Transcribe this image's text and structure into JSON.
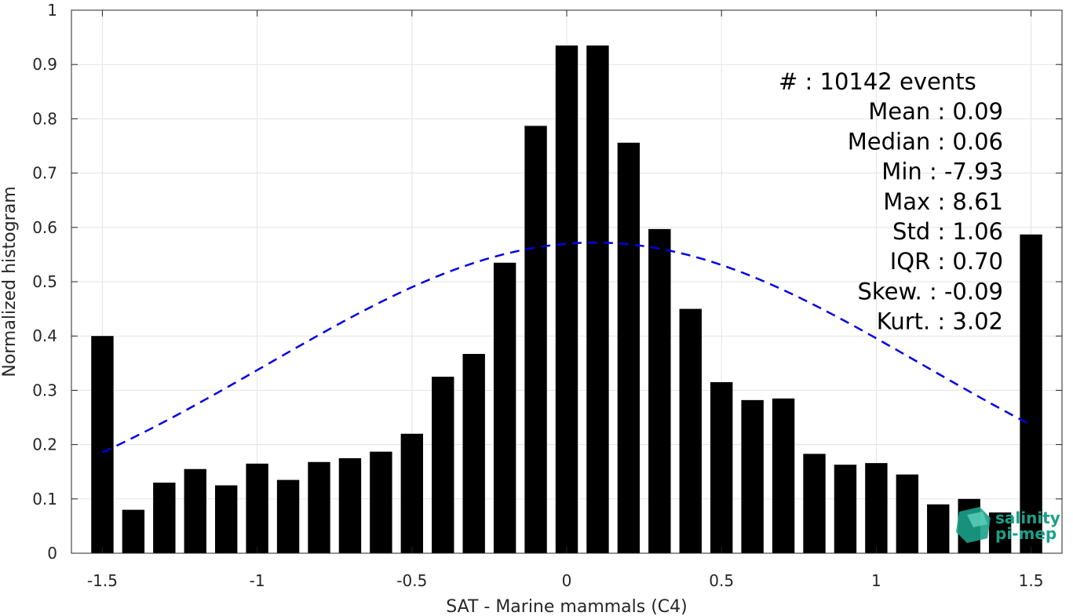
{
  "chart_data": {
    "type": "bar",
    "xlabel": "SAT - Marine mammals (C4)",
    "ylabel": "Normalized histogram",
    "xlim": [
      -1.6,
      1.6
    ],
    "ylim": [
      0,
      1
    ],
    "xticks": [
      -1.5,
      -1,
      -0.5,
      0,
      0.5,
      1,
      1.5
    ],
    "xtick_labels": [
      "-1.5",
      "-1",
      "-0.5",
      "0",
      "0.5",
      "1",
      "1.5"
    ],
    "yticks": [
      0,
      0.1,
      0.2,
      0.3,
      0.4,
      0.5,
      0.6,
      0.7,
      0.8,
      0.9,
      1
    ],
    "ytick_labels": [
      "0",
      "0.1",
      "0.2",
      "0.3",
      "0.4",
      "0.5",
      "0.6",
      "0.7",
      "0.8",
      "0.9",
      "1"
    ],
    "grid": true,
    "bar_color": "#000000",
    "bins": [
      -1.5,
      -1.4,
      -1.3,
      -1.2,
      -1.1,
      -1.0,
      -0.9,
      -0.8,
      -0.7,
      -0.6,
      -0.5,
      -0.4,
      -0.3,
      -0.2,
      -0.1,
      0.0,
      0.1,
      0.2,
      0.3,
      0.4,
      0.5,
      0.6,
      0.7,
      0.8,
      0.9,
      1.0,
      1.1,
      1.2,
      1.3,
      1.4,
      1.5
    ],
    "values": [
      0.4,
      0.08,
      0.13,
      0.155,
      0.125,
      0.165,
      0.135,
      0.168,
      0.175,
      0.187,
      0.22,
      0.325,
      0.367,
      0.535,
      0.787,
      0.935,
      0.935,
      0.756,
      0.597,
      0.45,
      0.315,
      0.282,
      0.285,
      0.183,
      0.163,
      0.166,
      0.145,
      0.09,
      0.1,
      0.075,
      0.587
    ],
    "gaussian_fit": {
      "mean": 0.09,
      "std": 1.06,
      "peak": 0.572,
      "color": "#0000e6",
      "style": "dashed",
      "x_range": [
        -1.5,
        1.5
      ]
    },
    "stats": [
      "#  : 10142 events",
      "Mean : 0.09",
      "Median : 0.06",
      "Min : -7.93",
      "Max : 8.61",
      "Std : 1.06",
      "IQR : 0.70",
      "Skew. : -0.09",
      "Kurt. : 3.02"
    ]
  },
  "logo": {
    "line1": "salinity",
    "line2": "pi-mep"
  }
}
